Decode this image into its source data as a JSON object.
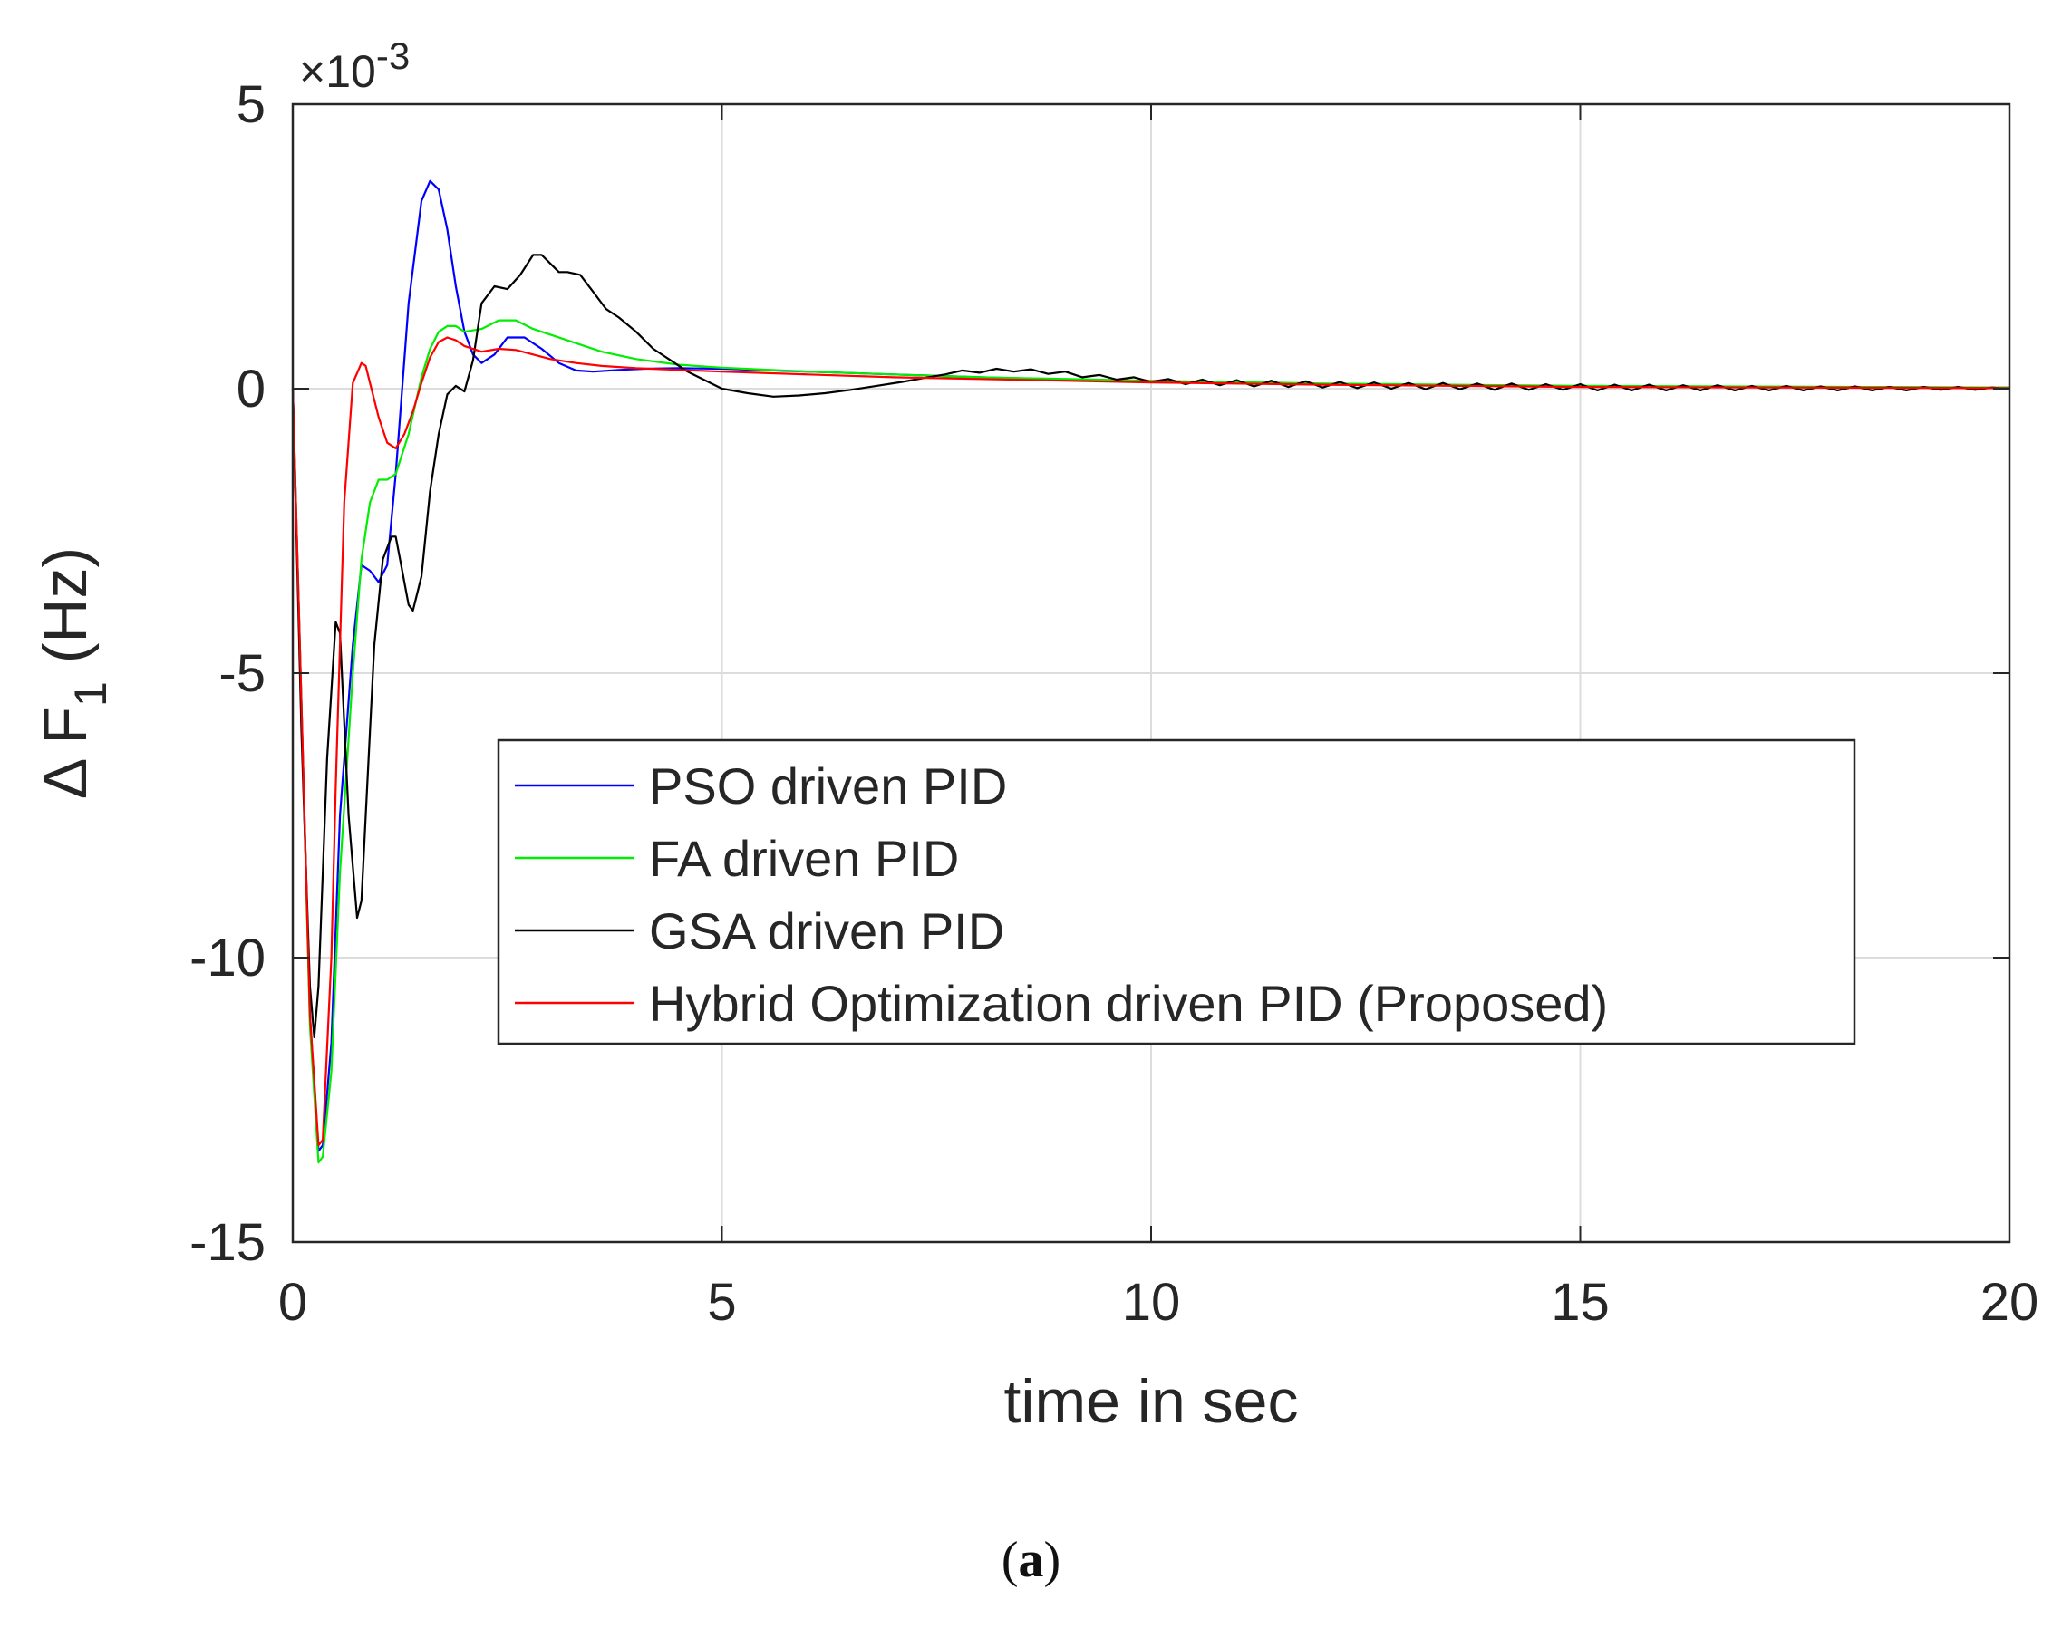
{
  "chart_data": {
    "type": "line",
    "title": "",
    "xlabel": "time in sec",
    "ylabel_prefix": "Δ F",
    "ylabel_subscript": "1",
    "ylabel_unit": "(Hz)",
    "y_exponent": {
      "base": "×10",
      "power": "-3"
    },
    "xlim": [
      0,
      20
    ],
    "ylim": [
      -15,
      5
    ],
    "x_ticks": [
      0,
      5,
      10,
      15,
      20
    ],
    "x_tick_labels": [
      "0",
      "5",
      "10",
      "15",
      "20"
    ],
    "y_ticks": [
      5,
      0,
      -5,
      -10,
      -15
    ],
    "y_tick_labels": [
      "5",
      "0",
      "-5",
      "-10",
      "-15"
    ],
    "grid": true,
    "legend_position": "center",
    "series": [
      {
        "name": "PSO driven PID",
        "color": "#0000ff",
        "x": [
          0,
          0.1,
          0.2,
          0.3,
          0.35,
          0.45,
          0.55,
          0.7,
          0.8,
          0.9,
          1.0,
          1.1,
          1.2,
          1.35,
          1.5,
          1.6,
          1.7,
          1.8,
          1.9,
          2.0,
          2.1,
          2.2,
          2.35,
          2.5,
          2.7,
          2.9,
          3.1,
          3.3,
          3.5,
          3.8,
          4.1,
          4.5,
          5,
          6,
          7,
          8,
          10,
          12,
          15,
          20
        ],
        "y": [
          0,
          -5.5,
          -11,
          -13.4,
          -13.3,
          -11.5,
          -7.5,
          -4.5,
          -3.1,
          -3.2,
          -3.4,
          -3.1,
          -1.5,
          1.5,
          3.3,
          3.65,
          3.5,
          2.8,
          1.8,
          1.0,
          0.6,
          0.45,
          0.6,
          0.9,
          0.9,
          0.7,
          0.45,
          0.32,
          0.3,
          0.33,
          0.35,
          0.36,
          0.35,
          0.3,
          0.25,
          0.2,
          0.12,
          0.08,
          0.04,
          0.02
        ]
      },
      {
        "name": "FA driven PID",
        "color": "#00ee00",
        "x": [
          0,
          0.1,
          0.2,
          0.3,
          0.35,
          0.45,
          0.55,
          0.7,
          0.8,
          0.9,
          1.0,
          1.1,
          1.2,
          1.35,
          1.5,
          1.6,
          1.7,
          1.8,
          1.9,
          2.0,
          2.2,
          2.4,
          2.6,
          2.8,
          3.0,
          3.3,
          3.6,
          4.0,
          4.5,
          5,
          6,
          7,
          8,
          10,
          12,
          15,
          20
        ],
        "y": [
          0,
          -5.5,
          -11.2,
          -13.6,
          -13.5,
          -12,
          -8.5,
          -5,
          -3,
          -2,
          -1.6,
          -1.6,
          -1.5,
          -0.8,
          0.2,
          0.7,
          1.0,
          1.1,
          1.1,
          1.0,
          1.05,
          1.2,
          1.2,
          1.05,
          0.95,
          0.8,
          0.65,
          0.52,
          0.42,
          0.37,
          0.3,
          0.25,
          0.2,
          0.14,
          0.09,
          0.05,
          0.02
        ]
      },
      {
        "name": "GSA driven PID",
        "color": "#000000",
        "x": [
          0,
          0.1,
          0.2,
          0.25,
          0.3,
          0.4,
          0.5,
          0.55,
          0.65,
          0.75,
          0.8,
          0.85,
          0.95,
          1.05,
          1.15,
          1.2,
          1.25,
          1.35,
          1.4,
          1.5,
          1.6,
          1.7,
          1.8,
          1.9,
          2.0,
          2.1,
          2.2,
          2.35,
          2.5,
          2.65,
          2.8,
          2.9,
          3.0,
          3.1,
          3.2,
          3.35,
          3.5,
          3.65,
          3.8,
          4.0,
          4.2,
          4.4,
          4.6,
          4.8,
          5.0,
          5.3,
          5.6,
          5.9,
          6.2,
          6.5,
          6.8,
          7.1,
          7.4,
          7.6,
          7.8,
          8.0,
          8.2,
          8.4,
          8.6,
          8.8,
          9.0,
          9.2,
          9.4,
          9.6,
          9.8,
          10.0,
          10.2,
          10.4,
          10.6,
          10.8,
          11.0,
          11.2,
          11.4,
          11.6,
          11.8,
          12.0,
          12.2,
          12.4,
          12.6,
          12.8,
          13.0,
          13.2,
          13.4,
          13.6,
          13.8,
          14.0,
          14.2,
          14.4,
          14.6,
          14.8,
          15.0,
          15.2,
          15.4,
          15.6,
          15.8,
          16.0,
          16.2,
          16.4,
          16.6,
          16.8,
          17.0,
          17.2,
          17.4,
          17.6,
          17.8,
          18.0,
          18.2,
          18.4,
          18.6,
          18.8,
          19.0,
          19.2,
          19.4,
          19.6,
          19.8,
          20.0
        ],
        "y": [
          0,
          -6,
          -10.5,
          -11.4,
          -10.5,
          -6.5,
          -4.1,
          -4.3,
          -7.5,
          -9.3,
          -9.0,
          -7.5,
          -4.5,
          -3.0,
          -2.6,
          -2.6,
          -3.0,
          -3.8,
          -3.9,
          -3.3,
          -1.8,
          -0.8,
          -0.1,
          0.05,
          -0.05,
          0.5,
          1.5,
          1.8,
          1.75,
          2.0,
          2.35,
          2.35,
          2.2,
          2.05,
          2.05,
          2.0,
          1.7,
          1.4,
          1.25,
          1.0,
          0.7,
          0.5,
          0.3,
          0.15,
          0.0,
          -0.08,
          -0.14,
          -0.12,
          -0.08,
          -0.02,
          0.05,
          0.12,
          0.2,
          0.25,
          0.32,
          0.28,
          0.35,
          0.3,
          0.34,
          0.26,
          0.3,
          0.2,
          0.24,
          0.16,
          0.2,
          0.12,
          0.17,
          0.08,
          0.16,
          0.06,
          0.15,
          0.04,
          0.14,
          0.03,
          0.13,
          0.02,
          0.12,
          0.01,
          0.11,
          0.0,
          0.1,
          -0.01,
          0.1,
          -0.01,
          0.09,
          -0.02,
          0.09,
          -0.02,
          0.08,
          -0.02,
          0.08,
          -0.03,
          0.07,
          -0.03,
          0.07,
          -0.03,
          0.06,
          -0.03,
          0.06,
          -0.03,
          0.05,
          -0.03,
          0.05,
          -0.03,
          0.04,
          -0.03,
          0.04,
          -0.03,
          0.03,
          -0.03,
          0.03,
          -0.02,
          0.03,
          -0.02,
          0.02,
          -0.01
        ]
      },
      {
        "name": "Hybrid Optimization driven PID (Proposed)",
        "color": "#ff0000",
        "x": [
          0,
          0.1,
          0.2,
          0.3,
          0.35,
          0.45,
          0.5,
          0.6,
          0.7,
          0.8,
          0.85,
          0.9,
          1.0,
          1.1,
          1.2,
          1.3,
          1.4,
          1.5,
          1.6,
          1.7,
          1.8,
          1.9,
          2.0,
          2.2,
          2.4,
          2.6,
          2.8,
          3.0,
          3.3,
          3.6,
          4.0,
          4.5,
          5,
          6,
          7,
          8,
          10,
          12,
          15,
          20
        ],
        "y": [
          0,
          -5.5,
          -11,
          -13.3,
          -13.2,
          -10,
          -7,
          -2,
          0.1,
          0.45,
          0.4,
          0.1,
          -0.5,
          -0.95,
          -1.05,
          -0.8,
          -0.4,
          0.1,
          0.55,
          0.82,
          0.9,
          0.85,
          0.75,
          0.65,
          0.7,
          0.68,
          0.6,
          0.52,
          0.45,
          0.4,
          0.36,
          0.33,
          0.3,
          0.25,
          0.2,
          0.17,
          0.11,
          0.07,
          0.03,
          0.01
        ]
      }
    ]
  },
  "caption": {
    "open": "(",
    "letter": "a",
    "close": ")"
  }
}
